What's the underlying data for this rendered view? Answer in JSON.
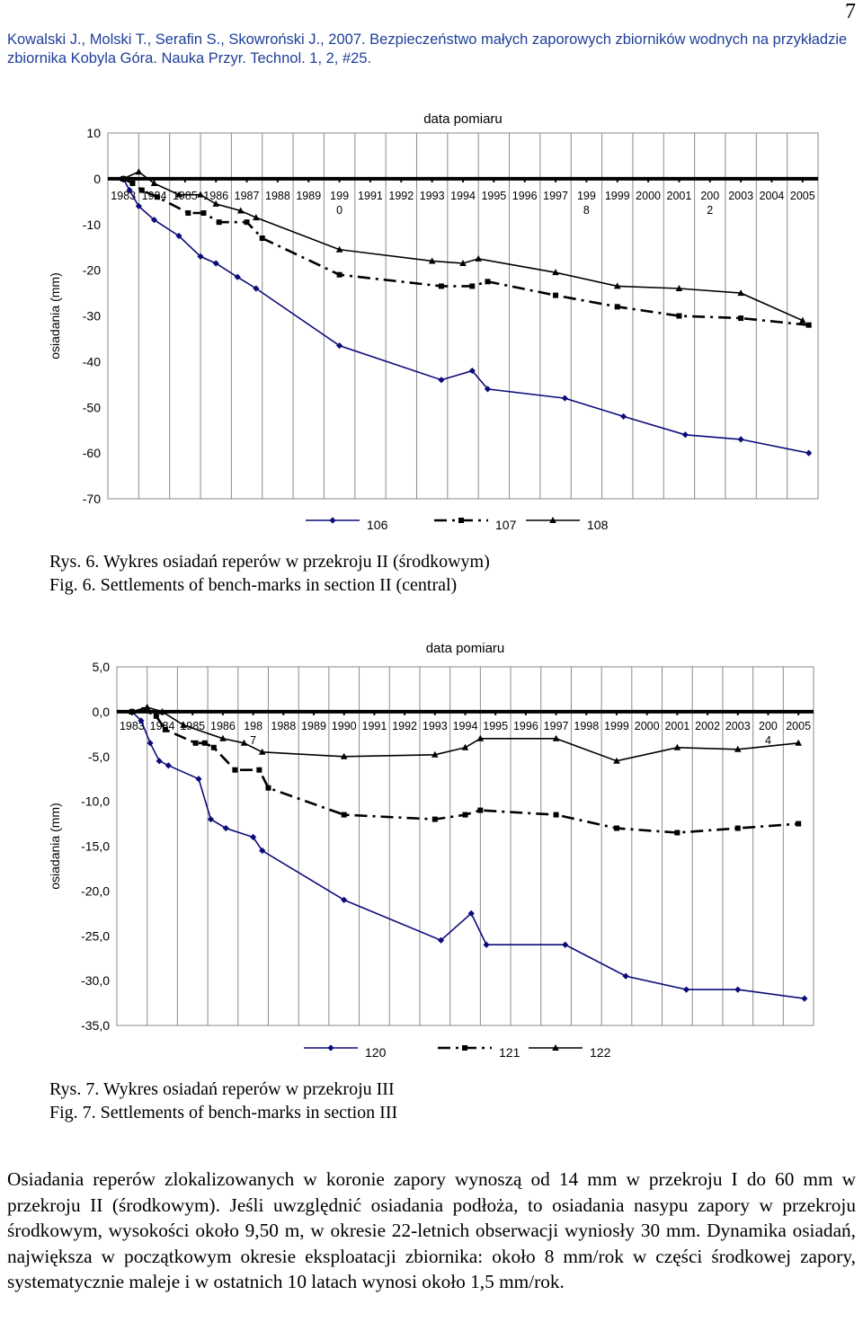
{
  "page_number": "7",
  "citation": "Kowalski J., Molski T., Serafin S., Skowroński J., 2007. Bezpieczeństwo małych zaporowych zbiorników wodnych na przykładzie zbiornika Kobyla Góra. Nauka Przyr. Technol. 1, 2, #25.",
  "figure1": {
    "caption_pl": "Rys. 6. Wykres osiadań reperów w przekroju II (środkowym)",
    "caption_en": "Fig. 6. Settlements of bench-marks in section II (central)"
  },
  "figure2": {
    "caption_pl": "Rys. 7. Wykres osiadań reperów w przekroju III",
    "caption_en": "Fig. 7. Settlements of bench-marks in section III"
  },
  "body_text": "Osiadania reperów zlokalizowanych w koronie zapory wynoszą od 14 mm w przekroju I do 60 mm w przekroju II (środkowym). Jeśli uwzględnić osiadania podłoża, to osiadania nasypu zapory w przekroju środkowym, wysokości około 9,50 m, w okresie 22-letnich obserwacji wyniosły 30 mm. Dynamika osiadań, największa w początkowym okresie eksploatacji zbiornika: około 8 mm/rok w części środkowej zapory, systematycznie maleje i w ostatnich 10 latach wynosi około 1,5 mm/rok.",
  "chart_data": [
    {
      "type": "line",
      "title": "data pomiaru",
      "ylabel": "osiadania (mm)",
      "ylim": [
        -70,
        10
      ],
      "yticks": [
        10,
        0,
        -10,
        -20,
        -30,
        -40,
        -50,
        -60,
        -70
      ],
      "ytick_labels": [
        "10",
        "0",
        "-10",
        "-20",
        "-30",
        "-40",
        "-50",
        "-60",
        "-70"
      ],
      "xlim": [
        1982.5,
        2005.5
      ],
      "categories": [
        "1983",
        "1984",
        "1985",
        "1986",
        "1987",
        "1988",
        "1989",
        "1990",
        "1991",
        "1992",
        "1993",
        "1994",
        "1995",
        "1996",
        "1997",
        "1998",
        "1999",
        "2000",
        "2001",
        "2002",
        "2003",
        "2004",
        "2005"
      ],
      "category_labels": [
        "1983",
        "1984",
        "1985",
        "1986",
        "1987",
        "1988",
        "1989",
        "199\n0",
        "1991",
        "1992",
        "1993",
        "1994",
        "1995",
        "1996",
        "1997",
        "199\n8",
        "1999",
        "2000",
        "2001",
        "200\n2",
        "2003",
        "2004",
        "2005"
      ],
      "series": [
        {
          "name": "106",
          "marker": "diamond",
          "dash": "solid",
          "x": [
            1983.0,
            1983.2,
            1983.5,
            1984.0,
            1984.8,
            1985.5,
            1986.0,
            1986.7,
            1987.3,
            1990.0,
            1993.3,
            1994.3,
            1994.8,
            1997.3,
            1999.2,
            2001.2,
            2003.0,
            2005.2
          ],
          "y": [
            0,
            -2.5,
            -6,
            -9,
            -12.5,
            -17,
            -18.5,
            -21.5,
            -24,
            -36.5,
            -44,
            -42,
            -46,
            -48,
            -52,
            -56,
            -57,
            -60
          ]
        },
        {
          "name": "107",
          "marker": "square",
          "dash": "dashdot",
          "x": [
            1983.0,
            1983.3,
            1983.6,
            1984.1,
            1985.1,
            1985.6,
            1986.1,
            1987.0,
            1987.5,
            1990.0,
            1993.3,
            1994.3,
            1994.8,
            1997.0,
            1999.0,
            2001.0,
            2003.0,
            2005.2
          ],
          "y": [
            0,
            -1,
            -2.5,
            -4,
            -7.5,
            -7.5,
            -9.5,
            -9.5,
            -13,
            -21,
            -23.5,
            -23.5,
            -22.5,
            -25.5,
            -28,
            -30,
            -30.5,
            -32
          ]
        },
        {
          "name": "108",
          "marker": "triangle",
          "dash": "solid",
          "x": [
            1983.0,
            1983.5,
            1984.0,
            1984.8,
            1985.5,
            1986.0,
            1986.8,
            1987.3,
            1990.0,
            1993.0,
            1994.0,
            1994.5,
            1997.0,
            1999.0,
            2001.0,
            2003.0,
            2005.0
          ],
          "y": [
            0,
            1.5,
            -1,
            -3.5,
            -3.5,
            -5.5,
            -7,
            -8.5,
            -15.5,
            -18,
            -18.5,
            -17.5,
            -20.5,
            -23.5,
            -24,
            -25,
            -31
          ]
        }
      ]
    },
    {
      "type": "line",
      "title": "data pomiaru",
      "ylabel": "osiadania (mm)",
      "ylim": [
        -35,
        5
      ],
      "yticks": [
        5,
        0,
        -5,
        -10,
        -15,
        -20,
        -25,
        -30,
        -35
      ],
      "ytick_labels": [
        "5,0",
        "0,0",
        "-5,0",
        "-10,0",
        "-15,0",
        "-20,0",
        "-25,0",
        "-30,0",
        "-35,0"
      ],
      "xlim": [
        1982.5,
        2005.5
      ],
      "categories": [
        "1983",
        "1984",
        "1985",
        "1986",
        "1987",
        "1988",
        "1989",
        "1990",
        "1991",
        "1992",
        "1993",
        "1994",
        "1995",
        "1996",
        "1997",
        "1998",
        "1999",
        "2000",
        "2001",
        "2002",
        "2003",
        "2004",
        "2005"
      ],
      "category_labels": [
        "1983",
        "1984",
        "1985",
        "1986",
        "198\n7",
        "1988",
        "1989",
        "1990",
        "1991",
        "1992",
        "1993",
        "1994",
        "1995",
        "1996",
        "1997",
        "1998",
        "1999",
        "2000",
        "2001",
        "2002",
        "2003",
        "200\n4",
        "2005"
      ],
      "series": [
        {
          "name": "120",
          "marker": "diamond",
          "dash": "solid",
          "x": [
            1983.0,
            1983.3,
            1983.6,
            1983.9,
            1984.2,
            1985.2,
            1985.6,
            1986.1,
            1987.0,
            1987.3,
            1990.0,
            1993.2,
            1994.2,
            1994.7,
            1997.3,
            1999.3,
            2001.3,
            2003.0,
            2005.2
          ],
          "y": [
            0,
            -1,
            -3.5,
            -5.5,
            -6,
            -7.5,
            -12,
            -13,
            -14,
            -15.5,
            -21,
            -25.5,
            -22.5,
            -26,
            -26,
            -29.5,
            -31,
            -31,
            -32
          ]
        },
        {
          "name": "121",
          "marker": "square",
          "dash": "dashdot",
          "x": [
            1983.0,
            1983.4,
            1983.8,
            1984.1,
            1985.1,
            1985.4,
            1985.7,
            1986.4,
            1987.2,
            1987.5,
            1990.0,
            1993.0,
            1994.0,
            1994.5,
            1997.0,
            1999.0,
            2001.0,
            2003.0,
            2005.0
          ],
          "y": [
            0,
            0.2,
            -0.5,
            -2,
            -3.5,
            -3.5,
            -4,
            -6.5,
            -6.5,
            -8.5,
            -11.5,
            -12,
            -11.5,
            -11,
            -11.5,
            -13,
            -13.5,
            -13,
            -12.5
          ]
        },
        {
          "name": "122",
          "marker": "triangle",
          "dash": "solid",
          "x": [
            1983.0,
            1983.5,
            1984.0,
            1984.7,
            1986.0,
            1986.7,
            1987.3,
            1990.0,
            1993.0,
            1994.0,
            1994.5,
            1997.0,
            1999.0,
            2001.0,
            2003.0,
            2005.0
          ],
          "y": [
            0,
            0.5,
            0,
            -1.5,
            -3,
            -3.5,
            -4.5,
            -5,
            -4.8,
            -4,
            -3,
            -3,
            -5.5,
            -4,
            -4.2,
            -3.5
          ]
        }
      ]
    }
  ]
}
